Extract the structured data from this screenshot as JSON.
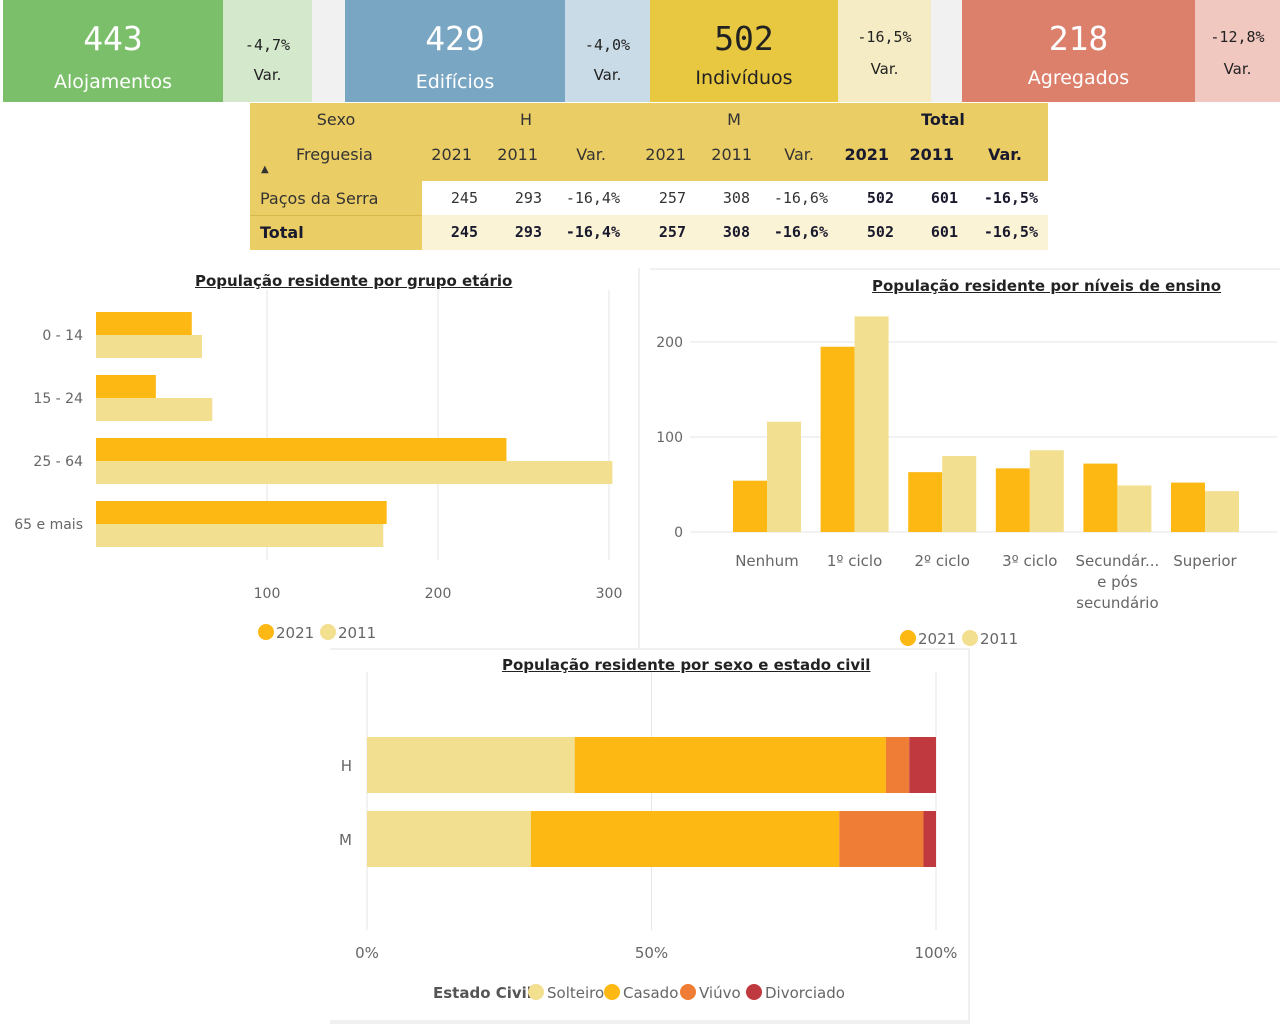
{
  "kpis": [
    {
      "value": "443",
      "label": "Alojamentos",
      "var": "-4,7%",
      "var_label": "Var.",
      "color": "#7bbf6a",
      "var_color": "#d4e8cc"
    },
    {
      "value": "429",
      "label": "Edifícios",
      "var": "-4,0%",
      "var_label": "Var.",
      "color": "#79a6c2",
      "var_color": "#c9dbe6"
    },
    {
      "value": "502",
      "label": "Indivíduos",
      "var": "-16,5%",
      "var_label": "Var.",
      "color": "#e8c840",
      "var_color": "#f5ebc4"
    },
    {
      "value": "218",
      "label": "Agregados",
      "var": "-12,8%",
      "var_label": "Var.",
      "color": "#dc806c",
      "var_color": "#f0c8c0"
    }
  ],
  "table": {
    "sexo_label": "Sexo",
    "freguesia_label": "Freguesia",
    "groups": [
      "H",
      "M",
      "Total"
    ],
    "subheaders": [
      "2021",
      "2011",
      "Var.",
      "2021",
      "2011",
      "Var.",
      "2021",
      "2011",
      "Var."
    ],
    "rows": [
      {
        "name": "Paços da Serra",
        "values": [
          "245",
          "293",
          "-16,4%",
          "257",
          "308",
          "-16,6%",
          "502",
          "601",
          "-16,5%"
        ]
      },
      {
        "name": "Total",
        "values": [
          "245",
          "293",
          "-16,4%",
          "257",
          "308",
          "-16,6%",
          "502",
          "601",
          "-16,5%"
        ]
      }
    ]
  },
  "chart_data": [
    {
      "type": "bar",
      "orientation": "horizontal",
      "title": "População residente por grupo etário",
      "categories": [
        "0 - 14",
        "15 - 24",
        "25 - 64",
        "65 e mais"
      ],
      "series": [
        {
          "name": "2021",
          "values": [
            56,
            35,
            240,
            170
          ],
          "color": "#fdb813"
        },
        {
          "name": "2011",
          "values": [
            62,
            68,
            302,
            168
          ],
          "color": "#f2df8f"
        }
      ],
      "xlim": [
        0,
        300
      ],
      "ticks": [
        "100",
        "200",
        "300"
      ],
      "tick_values": [
        100,
        200,
        300
      ],
      "legend": "bottom"
    },
    {
      "type": "bar",
      "title": "População residente por níveis de ensino",
      "categories": [
        "Nenhum",
        "1º ciclo",
        "2º ciclo",
        "3º ciclo",
        "Secundár... e pós secundário",
        "Superior"
      ],
      "category_lines": [
        [
          "Nenhum"
        ],
        [
          "1º ciclo"
        ],
        [
          "2º ciclo"
        ],
        [
          "3º ciclo"
        ],
        [
          "Secundár...",
          "e pós",
          "secundário"
        ],
        [
          "Superior"
        ]
      ],
      "series": [
        {
          "name": "2021",
          "values": [
            54,
            195,
            63,
            67,
            72,
            52
          ],
          "color": "#fdb813"
        },
        {
          "name": "2011",
          "values": [
            116,
            227,
            80,
            86,
            49,
            43
          ],
          "color": "#f2df8f"
        }
      ],
      "ylim": [
        0,
        240
      ],
      "ticks": [
        "0",
        "100",
        "200"
      ],
      "tick_values": [
        0,
        100,
        200
      ],
      "legend": "bottom"
    },
    {
      "type": "bar",
      "orientation": "horizontal",
      "stacked": "percent",
      "title": "População residente por sexo e estado civil",
      "categories": [
        "H",
        "M"
      ],
      "legend_title": "Estado Civil",
      "series": [
        {
          "name": "Solteiro",
          "values": [
            36.5,
            28.8
          ],
          "color": "#f2df8f"
        },
        {
          "name": "Casado",
          "values": [
            54.7,
            54.2
          ],
          "color": "#fdb813"
        },
        {
          "name": "Viúvo",
          "values": [
            4.1,
            14.8
          ],
          "color": "#ef7d36"
        },
        {
          "name": "Divorciado",
          "values": [
            4.7,
            2.2
          ],
          "color": "#c0393e"
        }
      ],
      "ticks": [
        "0%",
        "50%",
        "100%"
      ],
      "tick_values": [
        0,
        50,
        100
      ],
      "legend": "bottom"
    }
  ]
}
